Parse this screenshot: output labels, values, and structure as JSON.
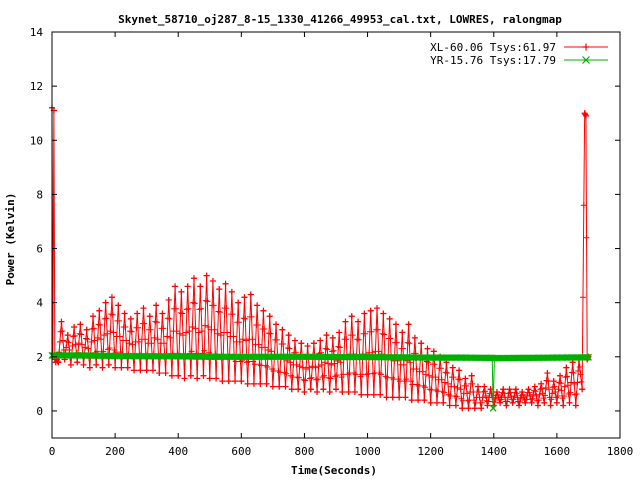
{
  "chart_data": {
    "type": "line",
    "title": "Skynet_58710_oj287_8-15_1330_41266_49953_cal.txt, LOWRES, ralongmap",
    "xlabel": "Time(Seconds)",
    "ylabel": "Power (Kelvin)",
    "xlim": [
      0,
      1800
    ],
    "ylim": [
      -1,
      14
    ],
    "xticks": [
      "0",
      "200",
      "400",
      "600",
      "800",
      "1000",
      "1200",
      "1400",
      "1600",
      "1800"
    ],
    "yticks": [
      "0",
      "2",
      "4",
      "6",
      "8",
      "10",
      "12",
      "14"
    ],
    "grid": false,
    "legend_position": "top-right",
    "series": [
      {
        "name": "XL-60.06 Tsys:61.97",
        "color": "#ff0000",
        "marker": "plus",
        "scan_period_s": 20,
        "points": [
          [
            0,
            11.2
          ],
          [
            3,
            2.0
          ],
          [
            6,
            11.1
          ],
          [
            9,
            1.9
          ],
          [
            12,
            1.8
          ],
          [
            15,
            1.9
          ],
          [
            20,
            1.8
          ],
          [
            30,
            3.3
          ],
          [
            40,
            1.9
          ],
          [
            50,
            2.8
          ],
          [
            60,
            1.7
          ],
          [
            70,
            3.1
          ],
          [
            80,
            1.8
          ],
          [
            90,
            3.2
          ],
          [
            100,
            1.7
          ],
          [
            110,
            3.0
          ],
          [
            120,
            1.6
          ],
          [
            130,
            3.5
          ],
          [
            140,
            1.7
          ],
          [
            150,
            3.7
          ],
          [
            160,
            1.6
          ],
          [
            170,
            4.0
          ],
          [
            180,
            1.7
          ],
          [
            190,
            4.2
          ],
          [
            200,
            1.6
          ],
          [
            210,
            3.9
          ],
          [
            220,
            1.6
          ],
          [
            230,
            3.6
          ],
          [
            240,
            1.6
          ],
          [
            250,
            3.4
          ],
          [
            260,
            1.5
          ],
          [
            270,
            3.6
          ],
          [
            280,
            1.5
          ],
          [
            290,
            3.8
          ],
          [
            300,
            1.5
          ],
          [
            310,
            3.5
          ],
          [
            320,
            1.5
          ],
          [
            330,
            3.9
          ],
          [
            340,
            1.4
          ],
          [
            350,
            3.6
          ],
          [
            360,
            1.4
          ],
          [
            370,
            4.1
          ],
          [
            380,
            1.3
          ],
          [
            390,
            4.6
          ],
          [
            400,
            1.3
          ],
          [
            410,
            4.4
          ],
          [
            420,
            1.2
          ],
          [
            430,
            4.6
          ],
          [
            440,
            1.3
          ],
          [
            450,
            4.9
          ],
          [
            460,
            1.2
          ],
          [
            470,
            4.6
          ],
          [
            480,
            1.3
          ],
          [
            490,
            5.0
          ],
          [
            500,
            1.2
          ],
          [
            510,
            4.8
          ],
          [
            520,
            1.2
          ],
          [
            530,
            4.5
          ],
          [
            540,
            1.1
          ],
          [
            550,
            4.7
          ],
          [
            560,
            1.1
          ],
          [
            570,
            4.4
          ],
          [
            580,
            1.1
          ],
          [
            590,
            4.0
          ],
          [
            600,
            1.1
          ],
          [
            610,
            4.2
          ],
          [
            620,
            1.0
          ],
          [
            630,
            4.3
          ],
          [
            640,
            1.0
          ],
          [
            650,
            3.9
          ],
          [
            660,
            1.0
          ],
          [
            670,
            3.7
          ],
          [
            680,
            1.0
          ],
          [
            690,
            3.5
          ],
          [
            700,
            0.9
          ],
          [
            710,
            3.2
          ],
          [
            720,
            0.9
          ],
          [
            730,
            3.0
          ],
          [
            740,
            0.9
          ],
          [
            750,
            2.8
          ],
          [
            760,
            0.8
          ],
          [
            770,
            2.6
          ],
          [
            780,
            0.8
          ],
          [
            790,
            2.5
          ],
          [
            800,
            0.7
          ],
          [
            810,
            2.4
          ],
          [
            820,
            0.8
          ],
          [
            830,
            2.5
          ],
          [
            840,
            0.7
          ],
          [
            850,
            2.6
          ],
          [
            860,
            0.8
          ],
          [
            870,
            2.8
          ],
          [
            880,
            0.7
          ],
          [
            890,
            2.7
          ],
          [
            900,
            0.8
          ],
          [
            910,
            2.9
          ],
          [
            920,
            0.7
          ],
          [
            930,
            3.3
          ],
          [
            940,
            0.7
          ],
          [
            950,
            3.5
          ],
          [
            960,
            0.7
          ],
          [
            970,
            3.3
          ],
          [
            980,
            0.6
          ],
          [
            990,
            3.6
          ],
          [
            1000,
            0.6
          ],
          [
            1010,
            3.7
          ],
          [
            1020,
            0.6
          ],
          [
            1030,
            3.8
          ],
          [
            1040,
            0.6
          ],
          [
            1050,
            3.6
          ],
          [
            1060,
            0.5
          ],
          [
            1070,
            3.4
          ],
          [
            1080,
            0.5
          ],
          [
            1090,
            3.2
          ],
          [
            1100,
            0.5
          ],
          [
            1110,
            2.9
          ],
          [
            1120,
            0.5
          ],
          [
            1130,
            3.2
          ],
          [
            1140,
            0.4
          ],
          [
            1150,
            2.7
          ],
          [
            1160,
            0.4
          ],
          [
            1170,
            2.5
          ],
          [
            1180,
            0.4
          ],
          [
            1190,
            2.3
          ],
          [
            1200,
            0.3
          ],
          [
            1210,
            2.2
          ],
          [
            1220,
            0.3
          ],
          [
            1230,
            2.0
          ],
          [
            1240,
            0.3
          ],
          [
            1250,
            1.8
          ],
          [
            1260,
            0.2
          ],
          [
            1270,
            1.6
          ],
          [
            1280,
            0.2
          ],
          [
            1290,
            1.5
          ],
          [
            1300,
            0.1
          ],
          [
            1310,
            1.2
          ],
          [
            1320,
            0.1
          ],
          [
            1330,
            1.3
          ],
          [
            1340,
            0.1
          ],
          [
            1350,
            0.9
          ],
          [
            1360,
            0.1
          ],
          [
            1370,
            0.9
          ],
          [
            1380,
            0.2
          ],
          [
            1390,
            0.8
          ],
          [
            1400,
            0.2
          ],
          [
            1410,
            0.7
          ],
          [
            1420,
            0.3
          ],
          [
            1430,
            0.8
          ],
          [
            1440,
            0.2
          ],
          [
            1450,
            0.8
          ],
          [
            1460,
            0.3
          ],
          [
            1470,
            0.8
          ],
          [
            1480,
            0.2
          ],
          [
            1490,
            0.7
          ],
          [
            1500,
            0.3
          ],
          [
            1510,
            0.8
          ],
          [
            1520,
            0.3
          ],
          [
            1530,
            0.9
          ],
          [
            1540,
            0.2
          ],
          [
            1550,
            1.0
          ],
          [
            1560,
            0.3
          ],
          [
            1570,
            1.4
          ],
          [
            1580,
            0.2
          ],
          [
            1590,
            1.1
          ],
          [
            1600,
            0.3
          ],
          [
            1610,
            1.3
          ],
          [
            1620,
            0.2
          ],
          [
            1630,
            1.6
          ],
          [
            1640,
            0.3
          ],
          [
            1650,
            1.8
          ],
          [
            1660,
            0.2
          ],
          [
            1670,
            1.9
          ],
          [
            1680,
            0.8
          ],
          [
            1688,
            11.0
          ],
          [
            1692,
            10.9
          ],
          [
            1696,
            1.9
          ],
          [
            1700,
            2.0
          ]
        ]
      },
      {
        "name": "YR-15.76 Tsys:17.79",
        "color": "#00b000",
        "marker": "cross",
        "points": [
          [
            0,
            2.05
          ],
          [
            100,
            2.05
          ],
          [
            200,
            2.03
          ],
          [
            300,
            2.02
          ],
          [
            400,
            2.02
          ],
          [
            500,
            2.0
          ],
          [
            600,
            2.0
          ],
          [
            700,
            2.0
          ],
          [
            800,
            2.0
          ],
          [
            900,
            1.99
          ],
          [
            1000,
            1.99
          ],
          [
            1100,
            1.98
          ],
          [
            1200,
            1.97
          ],
          [
            1300,
            1.97
          ],
          [
            1380,
            1.96
          ],
          [
            1395,
            1.96
          ],
          [
            1398,
            0.1
          ],
          [
            1402,
            1.95
          ],
          [
            1500,
            1.96
          ],
          [
            1600,
            1.97
          ],
          [
            1700,
            1.98
          ]
        ]
      }
    ]
  }
}
